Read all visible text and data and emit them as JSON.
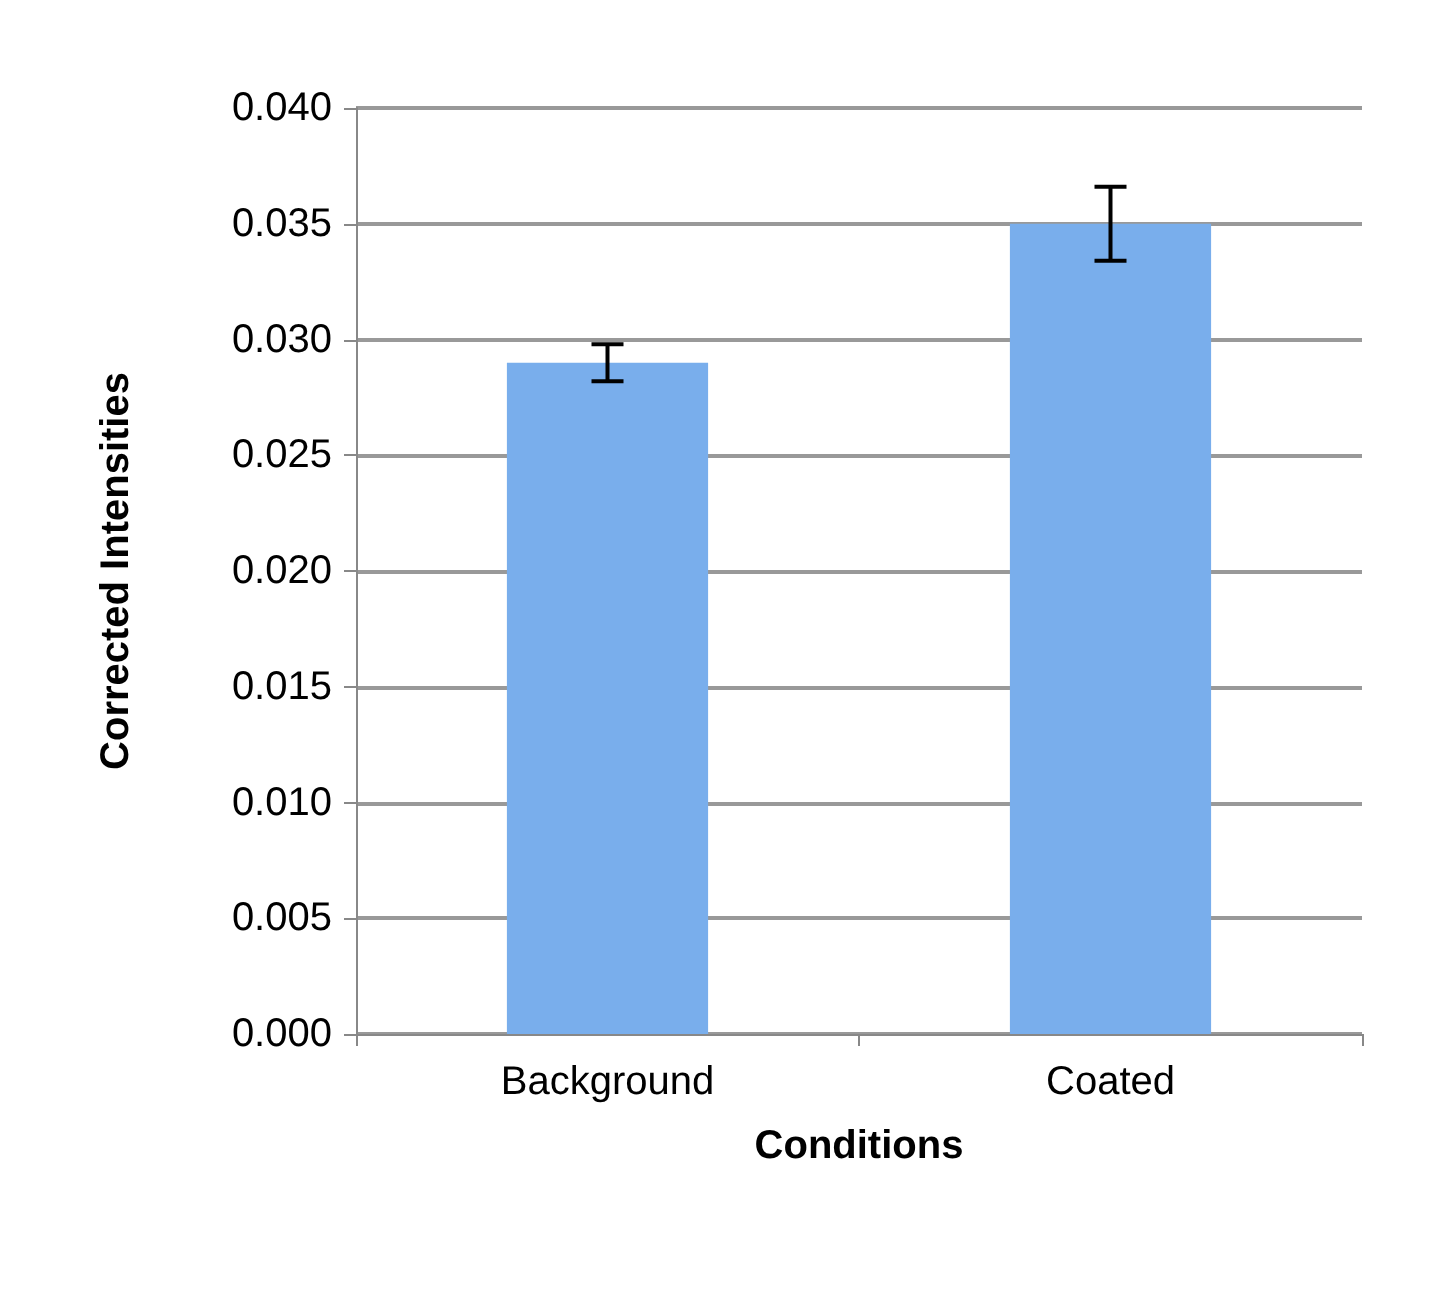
{
  "chart_data": {
    "type": "bar",
    "xlabel": "Conditions",
    "ylabel": "Corrected Intensities",
    "categories": [
      "Background",
      "Coated"
    ],
    "values": [
      0.029,
      0.035
    ],
    "errors": [
      0.0008,
      0.0016
    ],
    "color": "#79aeec",
    "ylim": [
      0,
      0.04
    ],
    "yticks": [
      {
        "value": 0,
        "label": "0.000"
      },
      {
        "value": 0.005,
        "label": "0.005"
      },
      {
        "value": 0.01,
        "label": "0.010"
      },
      {
        "value": 0.015,
        "label": "0.015"
      },
      {
        "value": 0.02,
        "label": "0.020"
      },
      {
        "value": 0.025,
        "label": "0.025"
      },
      {
        "value": 0.03,
        "label": "0.030"
      },
      {
        "value": 0.035,
        "label": "0.035"
      },
      {
        "value": 0.04,
        "label": "0.040"
      }
    ],
    "grid": "y"
  }
}
